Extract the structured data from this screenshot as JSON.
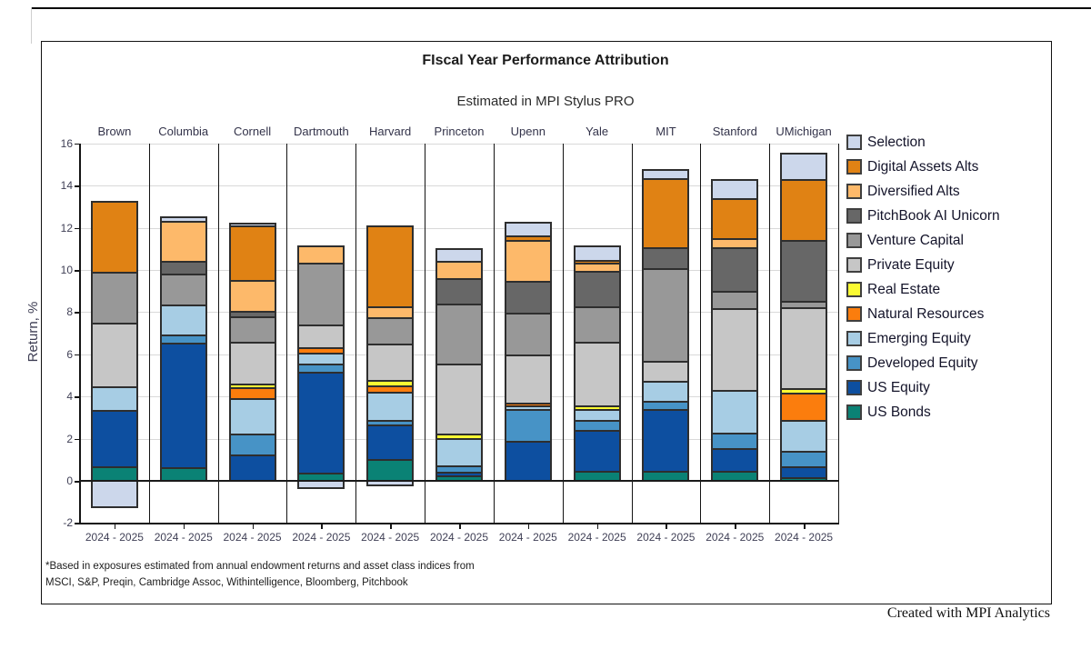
{
  "header": {
    "title": "FIscal Year Performance Attribution",
    "subtitle": "Estimated in MPI Stylus PRO"
  },
  "footer": {
    "note_line1": "*Based in exposures estimated from annual endowment returns and asset class indices from",
    "note_line2": "MSCI, S&P, Preqin, Cambridge Assoc, Withintelligence, Bloomberg, Pitchbook",
    "credit": "Created with MPI Analytics"
  },
  "chart_data": {
    "type": "bar",
    "stacked": true,
    "grid": true,
    "legend_position": "right",
    "title": "FIscal Year Performance Attribution",
    "subtitle": "Estimated in MPI Stylus PRO",
    "ylabel": "Return, %",
    "ylim": [
      -2,
      16
    ],
    "y_tick_step": 2,
    "categories": [
      "Brown",
      "Columbia",
      "Cornell",
      "Dartmouth",
      "Harvard",
      "Princeton",
      "Upenn",
      "Yale",
      "MIT",
      "Stanford",
      "UMichigan"
    ],
    "x_tick_label": "2024 - 2025",
    "series": [
      {
        "name": "US Bonds",
        "color": "#0A8275",
        "values": [
          0.65,
          0.6,
          0.0,
          0.35,
          1.0,
          0.2,
          0.0,
          0.45,
          0.45,
          0.45,
          0.15
        ]
      },
      {
        "name": "US Equity",
        "color": "#0D4FA0",
        "values": [
          2.65,
          5.9,
          1.2,
          4.8,
          1.65,
          0.2,
          1.85,
          1.9,
          2.9,
          1.05,
          0.5
        ]
      },
      {
        "name": "Developed Equity",
        "color": "#4793C6",
        "values": [
          0.0,
          0.4,
          1.0,
          0.35,
          0.2,
          0.3,
          1.5,
          0.5,
          0.4,
          0.75,
          0.75
        ]
      },
      {
        "name": "Emerging Equity",
        "color": "#A7CDE4",
        "values": [
          1.15,
          1.4,
          1.7,
          0.55,
          1.35,
          1.3,
          0.2,
          0.5,
          0.95,
          2.0,
          1.45
        ]
      },
      {
        "name": "Natural Resources",
        "color": "#FB7D0D",
        "values": [
          0.0,
          0.0,
          0.5,
          0.25,
          0.3,
          0.0,
          0.1,
          0.0,
          0.0,
          0.0,
          1.3
        ]
      },
      {
        "name": "Real Estate",
        "color": "#FAFA33",
        "values": [
          0.0,
          0.0,
          0.15,
          0.0,
          0.25,
          0.2,
          0.0,
          0.2,
          0.0,
          0.0,
          0.2
        ]
      },
      {
        "name": "Private Equity",
        "color": "#C6C6C6",
        "values": [
          3.0,
          0.0,
          2.0,
          1.05,
          1.7,
          3.3,
          2.3,
          3.0,
          0.95,
          3.9,
          3.85
        ]
      },
      {
        "name": "Venture Capital",
        "color": "#989898",
        "values": [
          2.4,
          1.5,
          1.2,
          2.95,
          1.25,
          2.85,
          2.0,
          1.7,
          4.4,
          0.8,
          0.3
        ]
      },
      {
        "name": "PitchBook AI Unicorn",
        "color": "#676767",
        "values": [
          0.0,
          0.6,
          0.25,
          0.0,
          0.0,
          1.2,
          1.5,
          1.65,
          1.0,
          2.1,
          2.9
        ]
      },
      {
        "name": "Diversified Alts",
        "color": "#FDB96A",
        "values": [
          0.0,
          1.9,
          1.5,
          0.8,
          0.55,
          0.85,
          1.95,
          0.4,
          0.0,
          0.4,
          0.0
        ]
      },
      {
        "name": "Digital Assets Alts",
        "color": "#E08214",
        "values": [
          3.4,
          0.0,
          2.55,
          0.0,
          3.8,
          0.0,
          0.2,
          0.15,
          3.25,
          1.9,
          2.85
        ]
      },
      {
        "name": "Selection",
        "color": "#CCD7EB",
        "values": [
          -1.25,
          0.2,
          0.15,
          -0.35,
          -0.2,
          0.6,
          0.65,
          0.65,
          0.45,
          0.9,
          1.25
        ]
      }
    ],
    "legend_order_note": "legend displayed top-to-bottom is reverse of stacking order"
  }
}
